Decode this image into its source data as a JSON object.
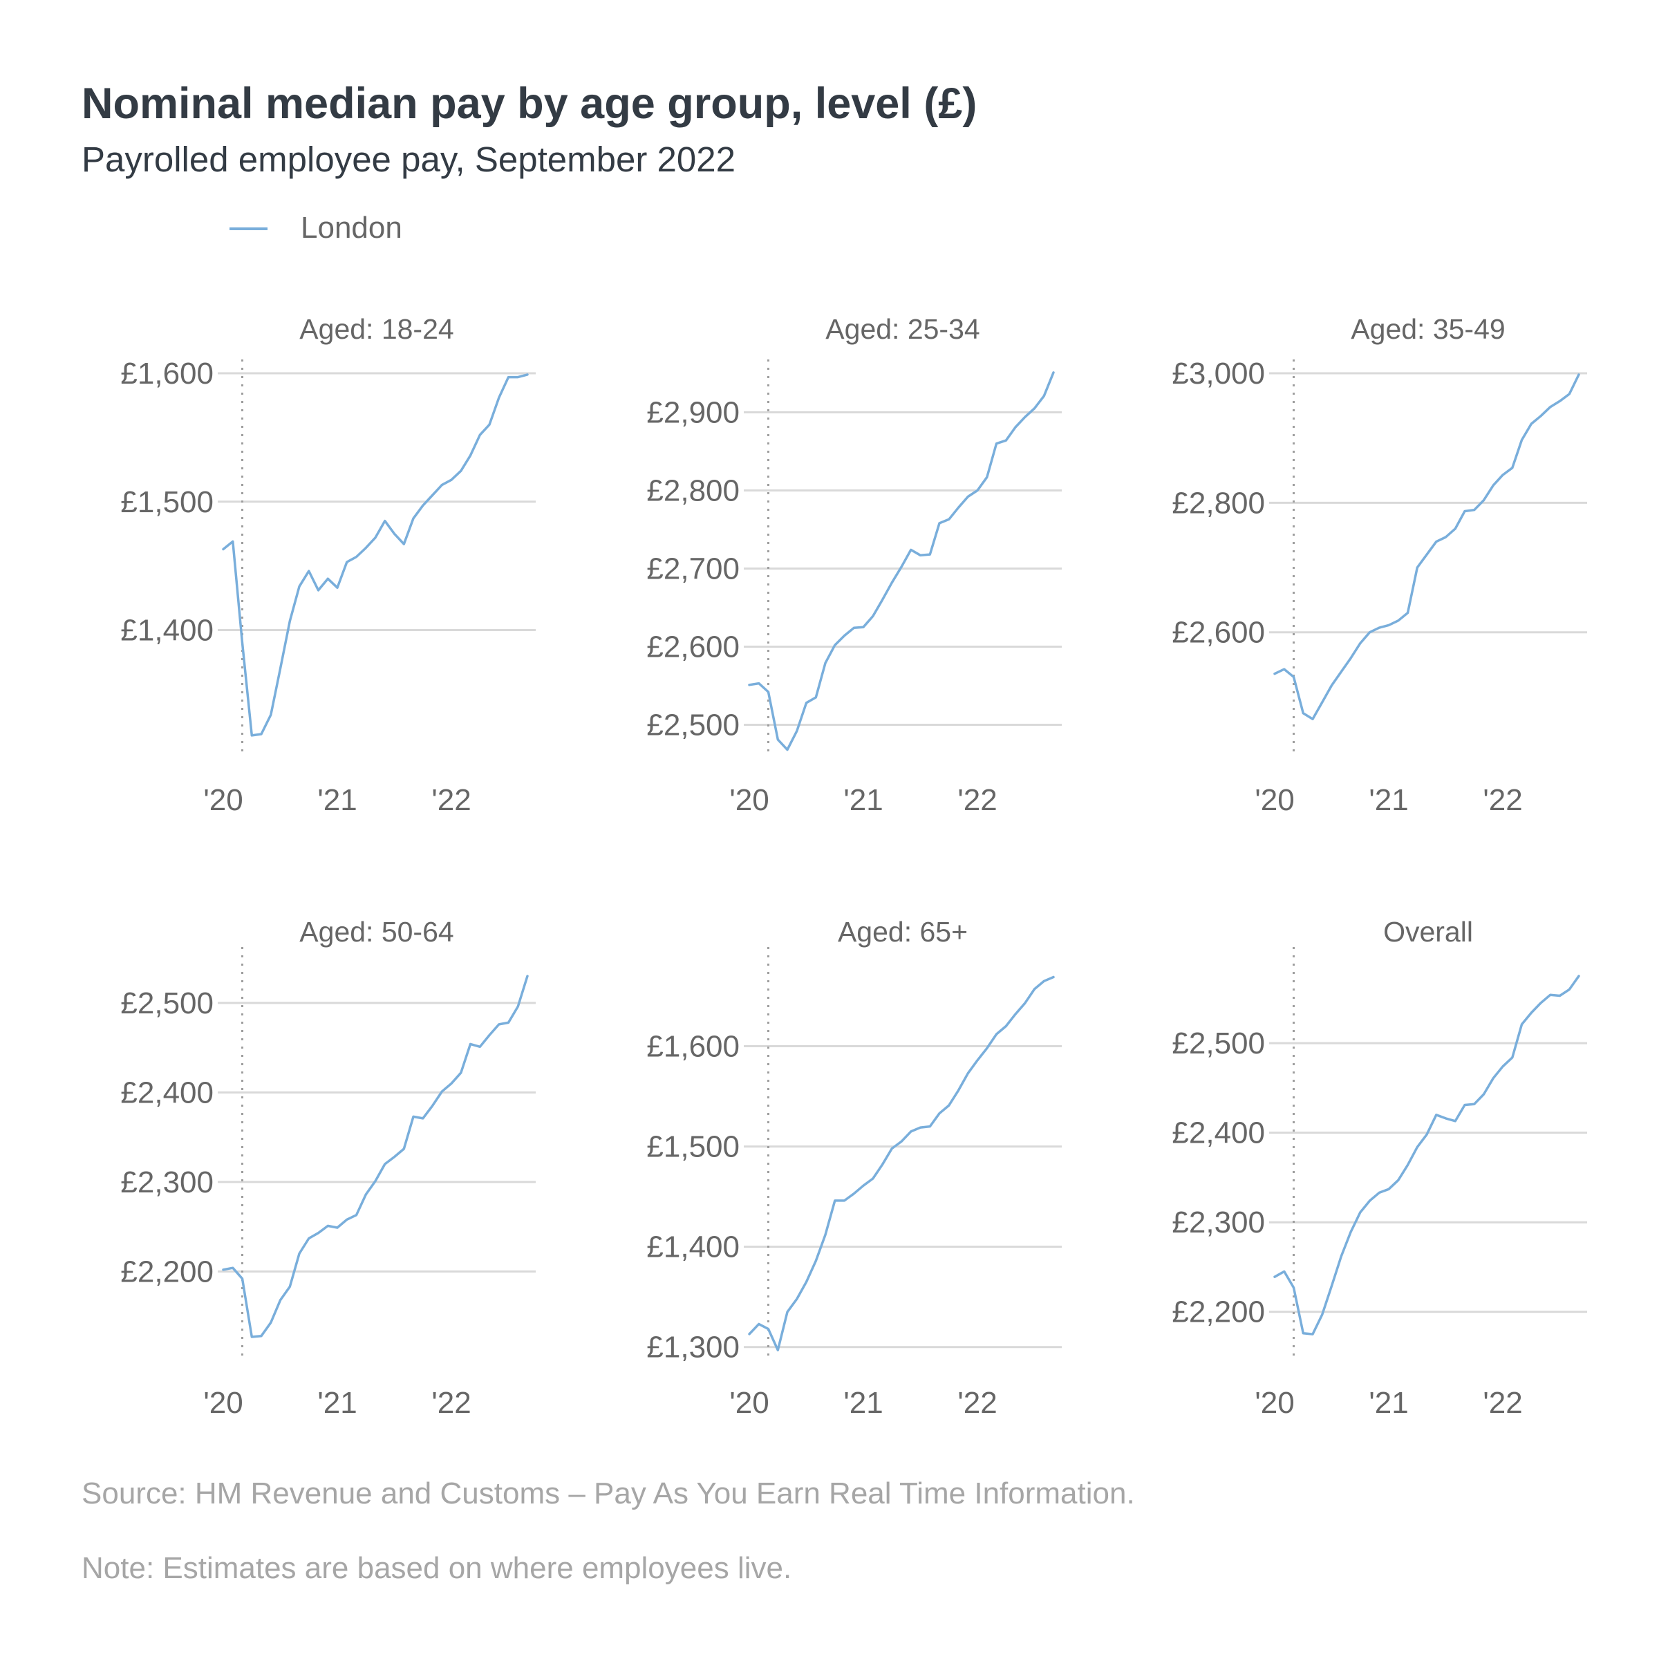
{
  "header": {
    "title": "Nominal median pay by age group, level (£)",
    "subtitle": "Payrolled employee pay, September 2022"
  },
  "legend": {
    "label": "London",
    "placement": "top-left"
  },
  "colors": {
    "series": "#79aedb",
    "grid": "#d9d9d9",
    "marker": "#9e9e9e"
  },
  "footer": {
    "source": "Source: HM Revenue and Customs – Pay As You Earn Real Time Information.",
    "note": "Note: Estimates are based on where employees live."
  },
  "chart_data": [
    {
      "type": "line",
      "title": "Aged: 18-24",
      "x_start": "2020-01",
      "x_ticks": [
        {
          "label": "'20",
          "x": "2020-01"
        },
        {
          "label": "'21",
          "x": "2021-01"
        },
        {
          "label": "'22",
          "x": "2022-01"
        }
      ],
      "marker_x": "2020-03",
      "y_ticks": [
        {
          "label": "£1,400",
          "value": 1400
        },
        {
          "label": "£1,500",
          "value": 1500
        },
        {
          "label": "£1,600",
          "value": 1600
        }
      ],
      "ylim": [
        1305,
        1600
      ],
      "series": [
        {
          "name": "London",
          "values": [
            1463,
            1469,
            1390,
            1318,
            1319,
            1334,
            1370,
            1407,
            1434,
            1446,
            1431,
            1440,
            1433,
            1453,
            1457,
            1464,
            1472,
            1485,
            1475,
            1467,
            1487,
            1497,
            1505,
            1513,
            1517,
            1524,
            1536,
            1552,
            1560,
            1581,
            1597,
            1597,
            1599
          ]
        }
      ]
    },
    {
      "type": "line",
      "title": "Aged: 25-34",
      "x_start": "2020-01",
      "x_ticks": [
        {
          "label": "'20",
          "x": "2020-01"
        },
        {
          "label": "'21",
          "x": "2021-01"
        },
        {
          "label": "'22",
          "x": "2022-01"
        }
      ],
      "marker_x": "2020-03",
      "y_ticks": [
        {
          "label": "£2,500",
          "value": 2500
        },
        {
          "label": "£2,600",
          "value": 2600
        },
        {
          "label": "£2,700",
          "value": 2700
        },
        {
          "label": "£2,800",
          "value": 2800
        },
        {
          "label": "£2,900",
          "value": 2900
        }
      ],
      "ylim": [
        2465,
        2950
      ],
      "series": [
        {
          "name": "London",
          "values": [
            2551,
            2553,
            2542,
            2481,
            2468,
            2492,
            2528,
            2535,
            2579,
            2602,
            2614,
            2624,
            2625,
            2639,
            2660,
            2682,
            2702,
            2724,
            2717,
            2718,
            2758,
            2763,
            2778,
            2792,
            2800,
            2817,
            2860,
            2864,
            2881,
            2894,
            2905,
            2921,
            2951
          ]
        }
      ]
    },
    {
      "type": "line",
      "title": "Aged: 35-49",
      "x_start": "2020-01",
      "x_ticks": [
        {
          "label": "'20",
          "x": "2020-01"
        },
        {
          "label": "'21",
          "x": "2021-01"
        },
        {
          "label": "'22",
          "x": "2022-01"
        }
      ],
      "marker_x": "2020-03",
      "y_ticks": [
        {
          "label": "£2,600",
          "value": 2600
        },
        {
          "label": "£2,800",
          "value": 2800
        },
        {
          "label": "£3,000",
          "value": 3000
        }
      ],
      "ylim": [
        2415,
        3000
      ],
      "series": [
        {
          "name": "London",
          "values": [
            2536,
            2543,
            2531,
            2475,
            2466,
            2492,
            2518,
            2539,
            2560,
            2583,
            2600,
            2607,
            2611,
            2618,
            2630,
            2700,
            2720,
            2740,
            2747,
            2760,
            2787,
            2789,
            2804,
            2827,
            2843,
            2854,
            2897,
            2922,
            2934,
            2948,
            2957,
            2968,
            2998
          ]
        }
      ]
    },
    {
      "type": "line",
      "title": "Aged: 50-64",
      "x_start": "2020-01",
      "x_ticks": [
        {
          "label": "'20",
          "x": "2020-01"
        },
        {
          "label": "'21",
          "x": "2021-01"
        },
        {
          "label": "'22",
          "x": "2022-01"
        }
      ],
      "marker_x": "2020-03",
      "y_ticks": [
        {
          "label": "£2,200",
          "value": 2200
        },
        {
          "label": "£2,300",
          "value": 2300
        },
        {
          "label": "£2,400",
          "value": 2400
        },
        {
          "label": "£2,500",
          "value": 2500
        }
      ],
      "ylim": [
        2110,
        2530
      ],
      "series": [
        {
          "name": "London",
          "values": [
            2202,
            2204,
            2192,
            2127,
            2128,
            2143,
            2168,
            2183,
            2220,
            2237,
            2243,
            2251,
            2249,
            2258,
            2263,
            2286,
            2301,
            2320,
            2328,
            2337,
            2373,
            2371,
            2385,
            2401,
            2410,
            2422,
            2454,
            2451,
            2464,
            2476,
            2478,
            2496,
            2530
          ]
        }
      ]
    },
    {
      "type": "line",
      "title": "Aged: 65+",
      "x_start": "2020-01",
      "x_ticks": [
        {
          "label": "'20",
          "x": "2020-01"
        },
        {
          "label": "'21",
          "x": "2021-01"
        },
        {
          "label": "'22",
          "x": "2022-01"
        }
      ],
      "marker_x": "2020-03",
      "y_ticks": [
        {
          "label": "£1,300",
          "value": 1300
        },
        {
          "label": "£1,400",
          "value": 1400
        },
        {
          "label": "£1,500",
          "value": 1500
        },
        {
          "label": "£1,600",
          "value": 1600
        }
      ],
      "ylim": [
        1295,
        1670
      ],
      "series": [
        {
          "name": "London",
          "values": [
            1313,
            1323,
            1318,
            1297,
            1335,
            1348,
            1365,
            1386,
            1412,
            1446,
            1446,
            1453,
            1461,
            1468,
            1482,
            1498,
            1505,
            1515,
            1519,
            1520,
            1533,
            1541,
            1556,
            1573,
            1586,
            1598,
            1612,
            1620,
            1632,
            1643,
            1657,
            1665,
            1669
          ]
        }
      ]
    },
    {
      "type": "line",
      "title": "Overall",
      "x_start": "2020-01",
      "x_ticks": [
        {
          "label": "'20",
          "x": "2020-01"
        },
        {
          "label": "'21",
          "x": "2021-01"
        },
        {
          "label": "'22",
          "x": "2022-01"
        }
      ],
      "marker_x": "2020-03",
      "y_ticks": [
        {
          "label": "£2,200",
          "value": 2200
        },
        {
          "label": "£2,300",
          "value": 2300
        },
        {
          "label": "£2,400",
          "value": 2400
        },
        {
          "label": "£2,500",
          "value": 2500
        }
      ],
      "ylim": [
        2155,
        2575
      ],
      "series": [
        {
          "name": "London",
          "values": [
            2239,
            2245,
            2227,
            2176,
            2175,
            2197,
            2229,
            2262,
            2289,
            2311,
            2324,
            2333,
            2337,
            2347,
            2364,
            2384,
            2398,
            2420,
            2416,
            2413,
            2431,
            2432,
            2443,
            2461,
            2474,
            2484,
            2521,
            2534,
            2545,
            2554,
            2553,
            2560,
            2575
          ]
        }
      ]
    }
  ]
}
